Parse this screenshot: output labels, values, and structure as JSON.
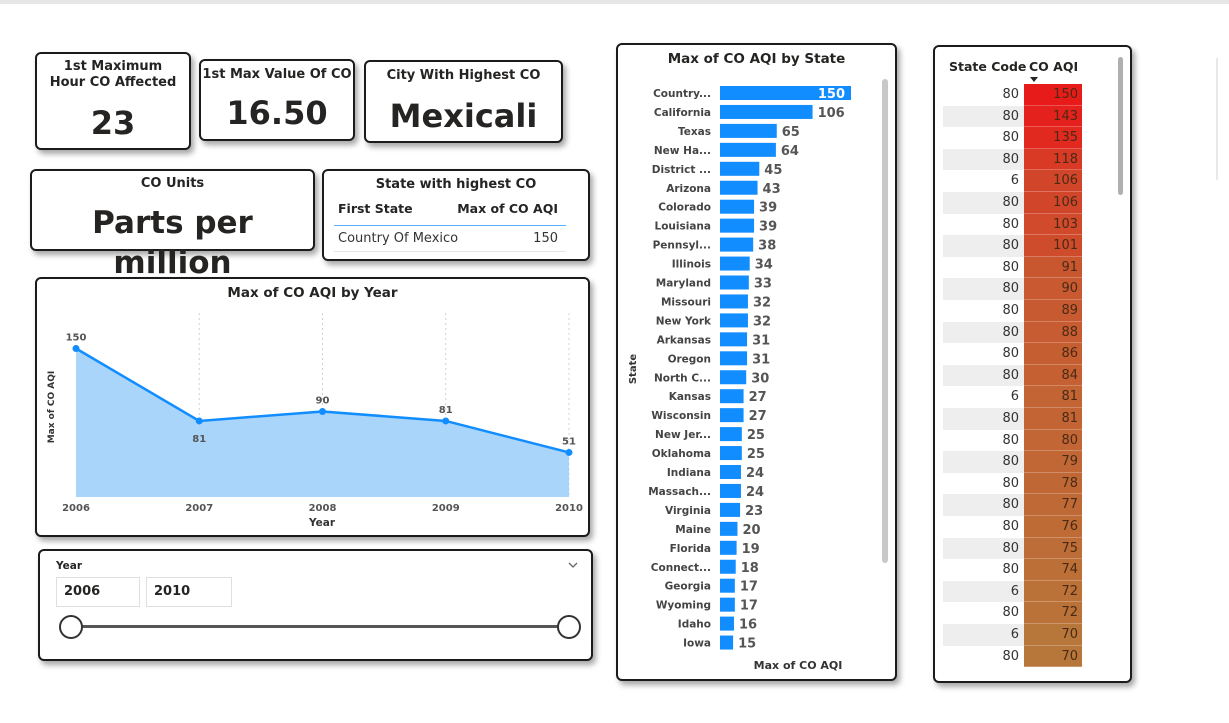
{
  "kpis": {
    "max_hour": {
      "label": "1st Maximum Hour CO Affected",
      "value": "23"
    },
    "max_value": {
      "label": "1st Max Value Of CO",
      "value": "16.50"
    },
    "city": {
      "label": "City With Highest CO",
      "value": "Mexicali"
    },
    "units": {
      "label": "CO Units",
      "value": "Parts per million"
    }
  },
  "state_table": {
    "title": "State with highest CO",
    "col1": "First State",
    "col2": "Max of CO AQI",
    "row_state": "Country Of Mexico",
    "row_value": "150"
  },
  "year_slicer": {
    "label": "Year",
    "start": "2006",
    "end": "2010",
    "chevron_icon": "chevron-down-icon"
  },
  "code_table": {
    "col1": "State Code",
    "col2": "CO AQI",
    "sort_icon": "sort-descending-icon",
    "rows": [
      [
        "80",
        "150"
      ],
      [
        "80",
        "143"
      ],
      [
        "80",
        "135"
      ],
      [
        "80",
        "118"
      ],
      [
        "6",
        "106"
      ],
      [
        "80",
        "106"
      ],
      [
        "80",
        "103"
      ],
      [
        "80",
        "101"
      ],
      [
        "80",
        "91"
      ],
      [
        "80",
        "90"
      ],
      [
        "80",
        "89"
      ],
      [
        "80",
        "88"
      ],
      [
        "80",
        "86"
      ],
      [
        "80",
        "84"
      ],
      [
        "6",
        "81"
      ],
      [
        "80",
        "81"
      ],
      [
        "80",
        "80"
      ],
      [
        "80",
        "79"
      ],
      [
        "80",
        "78"
      ],
      [
        "80",
        "77"
      ],
      [
        "80",
        "76"
      ],
      [
        "80",
        "75"
      ],
      [
        "80",
        "74"
      ],
      [
        "6",
        "72"
      ],
      [
        "80",
        "72"
      ],
      [
        "6",
        "70"
      ],
      [
        "80",
        "70"
      ]
    ]
  },
  "colors": {
    "bar": "#118dff",
    "area_fill": "#a9d5fb",
    "line": "#118dff",
    "heat_high": "#e81b1b",
    "heat_low": "#b8773a",
    "row_alt": "#eeeeee"
  },
  "chart_data": [
    {
      "type": "area",
      "title": "Max of CO AQI by Year",
      "xlabel": "Year",
      "ylabel": "Max of CO AQI",
      "categories": [
        "2006",
        "2007",
        "2008",
        "2009",
        "2010"
      ],
      "values": [
        150,
        81,
        90,
        81,
        51
      ],
      "ylim": [
        0,
        160
      ],
      "grid": "vertical dotted"
    },
    {
      "type": "bar",
      "orientation": "horizontal",
      "title": "Max of CO AQI by State",
      "xlabel": "Max of CO AQI",
      "ylabel": "State",
      "categories": [
        "Country...",
        "California",
        "Texas",
        "New Ha...",
        "District ...",
        "Arizona",
        "Colorado",
        "Louisiana",
        "Pennsyl...",
        "Illinois",
        "Maryland",
        "Missouri",
        "New York",
        "Arkansas",
        "Oregon",
        "North C...",
        "Kansas",
        "Wisconsin",
        "New Jer...",
        "Oklahoma",
        "Indiana",
        "Massach...",
        "Virginia",
        "Maine",
        "Florida",
        "Connect...",
        "Georgia",
        "Wyoming",
        "Idaho",
        "Iowa"
      ],
      "values": [
        150,
        106,
        65,
        64,
        45,
        43,
        39,
        39,
        38,
        34,
        33,
        32,
        32,
        31,
        31,
        30,
        27,
        27,
        25,
        25,
        24,
        24,
        23,
        20,
        19,
        18,
        17,
        17,
        16,
        15
      ],
      "xlim": [
        0,
        150
      ]
    }
  ]
}
